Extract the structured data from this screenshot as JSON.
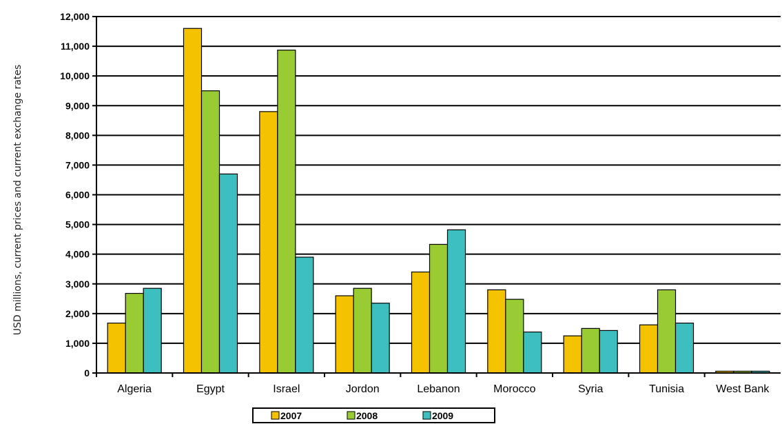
{
  "chart_data": {
    "type": "bar",
    "title": "",
    "xlabel": "",
    "ylabel": "USD millions, current prices and current exchange rates",
    "ylim": [
      0,
      12000
    ],
    "yticks": [
      0,
      1000,
      2000,
      3000,
      4000,
      5000,
      6000,
      7000,
      8000,
      9000,
      10000,
      11000,
      12000
    ],
    "ytick_labels": [
      "0",
      "1,000",
      "2,000",
      "3,000",
      "4,000",
      "5,000",
      "6,000",
      "7,000",
      "8,000",
      "9,000",
      "10,000",
      "11,000",
      "12,000"
    ],
    "grid": true,
    "legend_position": "bottom",
    "categories": [
      "Algeria",
      "Egypt",
      "Israel",
      "Jordon",
      "Lebanon",
      "Morocco",
      "Syria",
      "Tunisia",
      "West Bank"
    ],
    "series": [
      {
        "name": "2007",
        "color": "#f5c200",
        "values": [
          1680,
          11600,
          8800,
          2600,
          3400,
          2800,
          1250,
          1620,
          60
        ]
      },
      {
        "name": "2008",
        "color": "#99cc33",
        "values": [
          2680,
          9500,
          10870,
          2850,
          4330,
          2480,
          1500,
          2800,
          60
        ]
      },
      {
        "name": "2009",
        "color": "#3dbfbf",
        "values": [
          2850,
          6700,
          3900,
          2350,
          4820,
          1380,
          1430,
          1680,
          60
        ]
      }
    ]
  }
}
